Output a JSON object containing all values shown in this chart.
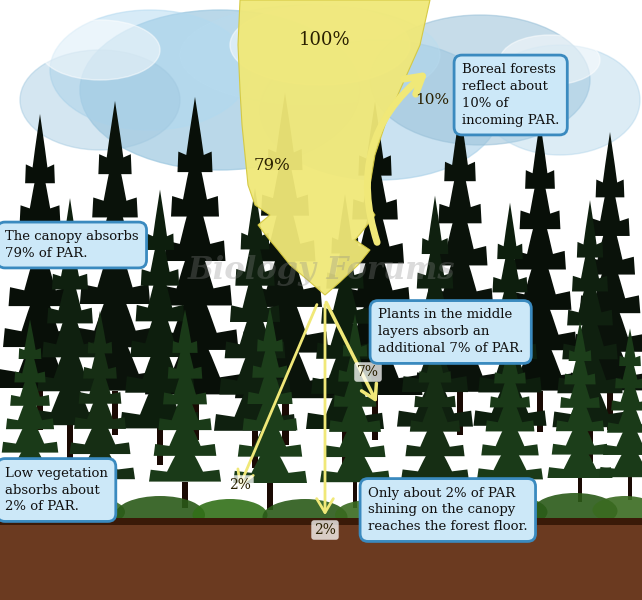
{
  "background_color": "#ffffff",
  "sky_color_top": "#b8d8e8",
  "sky_color_mid": "#c8e0f0",
  "ground_color": "#6b3a20",
  "arrow_yellow": "#f0e878",
  "arrow_edge": "#d4c840",
  "label_box_color": "#cce8f8",
  "label_box_edge": "#3a8abf",
  "tree_dark": "#0a1a0a",
  "tree_mid": "#112211",
  "tree_green": "#1a4a1a",
  "undergrowth_light": "#3a7a20",
  "undergrowth_mid": "#2a6018",
  "percentages": {
    "incoming": "100%",
    "reflected": "10%",
    "canopy_absorbed": "79%",
    "middle_absorbed": "7%",
    "low_veg_absorbed": "2%",
    "floor": "2%"
  },
  "annotations": {
    "boreal": "Boreal forests\nreflect about\n10% of\nincoming PAR.",
    "canopy": "The canopy absorbs\n79% of PAR.",
    "middle": "Plants in the middle\nlayers absorb an\nadditional 7% of PAR.",
    "low_veg": "Low vegetation\nabsorbs about\n2% of PAR.",
    "floor": "Only about 2% of PAR\nshining on the canopy\nreaches the forest floor."
  },
  "watermark": "Biology Forums",
  "fig_width": 6.42,
  "fig_height": 6.0
}
